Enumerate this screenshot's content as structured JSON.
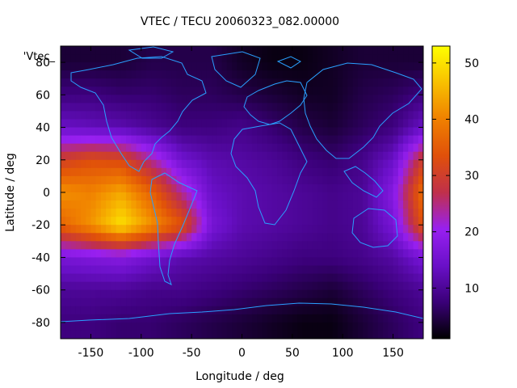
{
  "chart_data": {
    "type": "heatmap",
    "title": "VTEC / TECU 20060323_082.00000",
    "xlabel": "Longitude / deg",
    "ylabel": "Latitude / deg",
    "key_label": "'Vtec_",
    "xlim": [
      -180,
      180
    ],
    "ylim": [
      -90,
      90
    ],
    "x_ticks": [
      -150,
      -100,
      -50,
      0,
      50,
      100,
      150
    ],
    "y_ticks": [
      -80,
      -60,
      -40,
      -20,
      0,
      20,
      40,
      60,
      80
    ],
    "colorbar": {
      "range": [
        1,
        53
      ],
      "ticks": [
        10,
        20,
        30,
        40,
        50
      ],
      "palette": [
        "#000000",
        "#3a0078",
        "#6a10c8",
        "#9820f0",
        "#c0304a",
        "#e0500a",
        "#f08000",
        "#f8c000",
        "#ffff00"
      ]
    },
    "overlay": "coastlines",
    "coastline_color": "#2aa0ff",
    "lon_grid": [
      -180,
      -150,
      -120,
      -90,
      -60,
      -30,
      0,
      30,
      60,
      90,
      120,
      150,
      180
    ],
    "lat_grid": [
      80,
      60,
      40,
      20,
      0,
      -20,
      -40,
      -60,
      -80
    ],
    "vtec_samples": [
      [
        4,
        4,
        4,
        5,
        5,
        5,
        3,
        2,
        2,
        3,
        4,
        4,
        4
      ],
      [
        8,
        8,
        7,
        7,
        6,
        6,
        5,
        4,
        3,
        3,
        5,
        6,
        8
      ],
      [
        14,
        13,
        12,
        10,
        8,
        8,
        9,
        7,
        5,
        4,
        6,
        8,
        14
      ],
      [
        30,
        33,
        32,
        24,
        15,
        12,
        11,
        10,
        8,
        7,
        9,
        14,
        30
      ],
      [
        42,
        40,
        44,
        36,
        24,
        14,
        12,
        11,
        10,
        9,
        10,
        18,
        38
      ],
      [
        36,
        42,
        50,
        42,
        34,
        16,
        12,
        11,
        10,
        9,
        10,
        16,
        34
      ],
      [
        16,
        17,
        18,
        15,
        12,
        11,
        10,
        9,
        8,
        8,
        9,
        11,
        16
      ],
      [
        10,
        10,
        10,
        9,
        9,
        8,
        7,
        6,
        5,
        4,
        6,
        8,
        10
      ],
      [
        8,
        8,
        7,
        7,
        6,
        5,
        4,
        3,
        2,
        2,
        4,
        6,
        8
      ]
    ]
  }
}
